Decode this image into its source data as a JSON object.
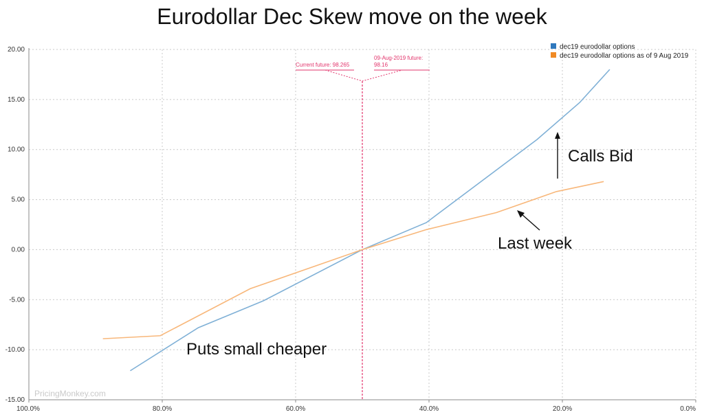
{
  "chart_data": {
    "type": "line",
    "title": "Eurodollar Dec Skew move on the week",
    "xlabel": "",
    "ylabel": "",
    "xlim": [
      100,
      0
    ],
    "ylim": [
      -15,
      20
    ],
    "x_ticks": [
      "100.0%",
      "80.0%",
      "60.0%",
      "40.0%",
      "20.0%",
      "0.0%"
    ],
    "y_ticks": [
      "20.00",
      "15.00",
      "10.00",
      "5.00",
      "0.00",
      "-5.00",
      "-10.00",
      "-15.00"
    ],
    "grid": "dashed",
    "legend_position": "top-right",
    "series": [
      {
        "name": "dec19 eurodollar options",
        "color": "#7fb0d6",
        "legend_color": "#2f78bd",
        "x": [
          84.8,
          74.6,
          64.8,
          50,
          40.4,
          23.8,
          17.4,
          12.9
        ],
        "y": [
          -12.1,
          -7.8,
          -5.1,
          0,
          2.7,
          11.0,
          14.7,
          18.0
        ]
      },
      {
        "name": "dec19 eurodollar options as of 9 Aug 2019",
        "color": "#f8b77a",
        "legend_color": "#f08a24",
        "x": [
          88.9,
          80.3,
          66.8,
          50,
          40.4,
          29.9,
          20.9,
          13.8
        ],
        "y": [
          -8.9,
          -8.6,
          -3.9,
          0,
          2.0,
          3.7,
          5.8,
          6.8
        ]
      }
    ],
    "reference_line": {
      "x": 50,
      "color": "#e2336b",
      "labels": [
        "Current future: 98.265",
        "09-Aug-2019 future:",
        "98.16"
      ]
    },
    "annotations": {
      "calls": "Calls Bid",
      "last_week": "Last week",
      "puts": "Puts small cheaper"
    },
    "watermark": "PricingMonkey.com"
  }
}
